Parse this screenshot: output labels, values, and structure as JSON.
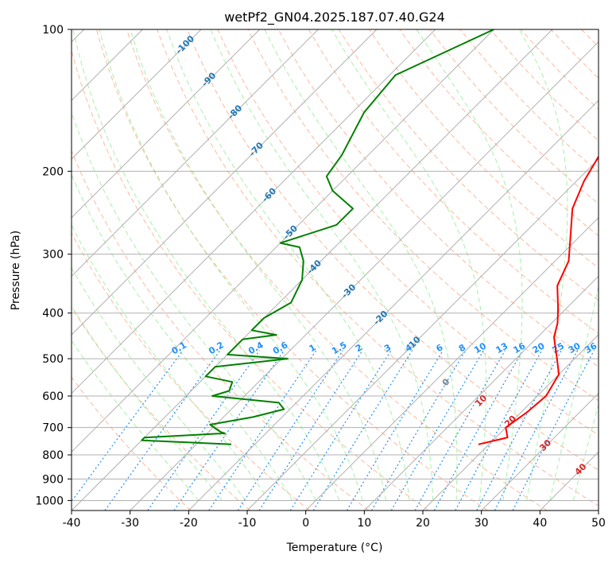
{
  "chart_data": {
    "type": "line",
    "title": "wetPf2_GN04.2025.187.07.40.G24",
    "xlabel": "Temperature (°C)",
    "ylabel": "Pressure (hPa)",
    "xlim": [
      -40,
      50
    ],
    "ylim": [
      1050,
      100
    ],
    "y_scale": "log",
    "x_ticks": [
      "-40",
      "-30",
      "-20",
      "-10",
      "0",
      "10",
      "20",
      "30",
      "40",
      "50"
    ],
    "y_ticks": [
      "100",
      "200",
      "300",
      "400",
      "500",
      "600",
      "700",
      "800",
      "900",
      "1000"
    ],
    "grid": true,
    "series": [
      {
        "role": "temperature",
        "color": "#ff0000",
        "points": [
          {
            "p": 760,
            "t": 18.2
          },
          {
            "p": 735,
            "t": 22.0
          },
          {
            "p": 700,
            "t": 20.0
          },
          {
            "p": 650,
            "t": 21.0
          },
          {
            "p": 600,
            "t": 21.5
          },
          {
            "p": 540,
            "t": 20.0
          },
          {
            "p": 500,
            "t": 17.0
          },
          {
            "p": 450,
            "t": 12.8
          },
          {
            "p": 420,
            "t": 11.0
          },
          {
            "p": 390,
            "t": 8.5
          },
          {
            "p": 350,
            "t": 4.6
          },
          {
            "p": 310,
            "t": 2.3
          },
          {
            "p": 280,
            "t": -1.0
          },
          {
            "p": 240,
            "t": -6.0
          },
          {
            "p": 210,
            "t": -8.7
          },
          {
            "p": 185,
            "t": -10.5
          },
          {
            "p": 160,
            "t": -13.0
          },
          {
            "p": 140,
            "t": -16.0
          },
          {
            "p": 125,
            "t": -18.5
          },
          {
            "p": 113,
            "t": -16.5
          },
          {
            "p": 100,
            "t": -15.0
          }
        ]
      },
      {
        "role": "dewpoint",
        "color": "#008000",
        "points": [
          {
            "p": 760,
            "t": -24.0
          },
          {
            "p": 745,
            "t": -40.0
          },
          {
            "p": 735,
            "t": -40.0
          },
          {
            "p": 720,
            "t": -27.0
          },
          {
            "p": 715,
            "t": -28.0
          },
          {
            "p": 690,
            "t": -31.0
          },
          {
            "p": 665,
            "t": -25.0
          },
          {
            "p": 640,
            "t": -21.0
          },
          {
            "p": 620,
            "t": -23.0
          },
          {
            "p": 600,
            "t": -35.5
          },
          {
            "p": 585,
            "t": -33.5
          },
          {
            "p": 560,
            "t": -34.5
          },
          {
            "p": 545,
            "t": -40.0
          },
          {
            "p": 520,
            "t": -40.0
          },
          {
            "p": 500,
            "t": -29.0
          },
          {
            "p": 490,
            "t": -40.0
          },
          {
            "p": 455,
            "t": -40.0
          },
          {
            "p": 445,
            "t": -35.0
          },
          {
            "p": 435,
            "t": -40.0
          },
          {
            "p": 410,
            "t": -40.0
          },
          {
            "p": 380,
            "t": -38.0
          },
          {
            "p": 340,
            "t": -40.0
          },
          {
            "p": 310,
            "t": -43.0
          },
          {
            "p": 290,
            "t": -46.0
          },
          {
            "p": 284,
            "t": -50.0
          },
          {
            "p": 260,
            "t": -43.5
          },
          {
            "p": 240,
            "t": -43.5
          },
          {
            "p": 220,
            "t": -50.0
          },
          {
            "p": 205,
            "t": -53.5
          },
          {
            "p": 185,
            "t": -54.5
          },
          {
            "p": 150,
            "t": -58.0
          },
          {
            "p": 125,
            "t": -59.0
          },
          {
            "p": 100,
            "t": -50.0
          }
        ]
      }
    ],
    "isotherm_labels": [
      "-100",
      "-90",
      "-80",
      "-70",
      "-60",
      "-50",
      "-40",
      "-30",
      "-20",
      "-10"
    ],
    "mixing_ratio_labels": [
      "0.1",
      "0.2",
      "0.4",
      "0.6",
      "1",
      "1.5",
      "2",
      "3",
      "4",
      "6",
      "8",
      "10",
      "13",
      "16",
      "20",
      "25",
      "30",
      "36"
    ],
    "moist_adiabat_labels": [
      "0",
      "10",
      "20",
      "30",
      "40"
    ],
    "colors": {
      "temperature": "#ff0000",
      "dewpoint": "#008000",
      "isotherm_label": "#1f77b4",
      "mixing_ratio": "#1e90ff",
      "moist_label": "#d62728",
      "dry_adiabat": "#ffa07a",
      "moist_adiabat": "#90ee90",
      "zero_label": "#808080"
    }
  }
}
